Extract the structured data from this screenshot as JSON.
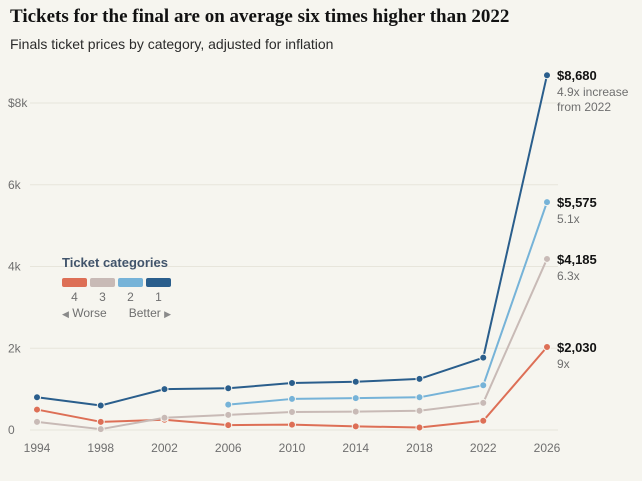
{
  "header": {
    "title": "Tickets for the final are on average six times higher than 2022",
    "subtitle": "Finals ticket prices by category, adjusted for inflation"
  },
  "legend": {
    "title": "Ticket categories",
    "categories": [
      "4",
      "3",
      "2",
      "1"
    ],
    "worse_arrow": "◀",
    "worse_label": "Worse",
    "better_label": "Better",
    "better_arrow": "▶"
  },
  "chart_data": {
    "type": "line",
    "x": [
      1994,
      1998,
      2002,
      2006,
      2010,
      2014,
      2018,
      2022,
      2026
    ],
    "x_tick_labels": [
      "1994",
      "1998",
      "2002",
      "2006",
      "2010",
      "2014",
      "2018",
      "2022",
      "2026"
    ],
    "y_ticks": [
      0,
      2000,
      4000,
      6000,
      8000
    ],
    "y_tick_labels": [
      "0",
      "2k",
      "4k",
      "6k",
      "$8k"
    ],
    "ylim": [
      0,
      8680
    ],
    "grid": "horizontal-faint",
    "legend_position": "inside-left",
    "series": [
      {
        "name": "Category 1",
        "color": "#2a5e8c",
        "values": [
          800,
          600,
          1000,
          1020,
          1150,
          1180,
          1250,
          1770,
          8680
        ],
        "end_value_label": "$8,680",
        "end_note": "4.9x increase from 2022"
      },
      {
        "name": "Category 2",
        "color": "#76b3d8",
        "values": [
          null,
          null,
          null,
          620,
          760,
          780,
          800,
          1095,
          5575
        ],
        "end_value_label": "$5,575",
        "end_note": "5.1x"
      },
      {
        "name": "Category 3",
        "color": "#c8bab6",
        "values": [
          200,
          20,
          300,
          370,
          440,
          450,
          470,
          665,
          4185
        ],
        "end_value_label": "$4,185",
        "end_note": "6.3x"
      },
      {
        "name": "Category 4",
        "color": "#dd6f56",
        "values": [
          500,
          200,
          250,
          120,
          130,
          90,
          60,
          225,
          2030
        ],
        "end_value_label": "$2,030",
        "end_note": "9x"
      }
    ]
  }
}
